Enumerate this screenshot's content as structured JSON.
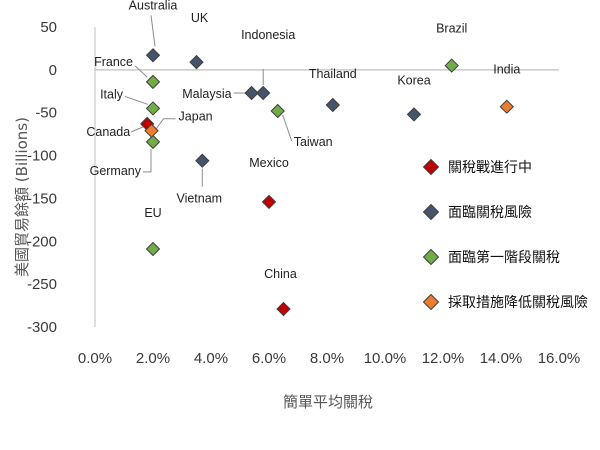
{
  "chart_data": {
    "type": "scatter",
    "title": "",
    "xlabel": "簡單平均關稅",
    "ylabel": "美國貿易餘額 (Billions)",
    "xlim": [
      0,
      16
    ],
    "ylim": [
      -300,
      50
    ],
    "x_ticks": [
      "0.0%",
      "2.0%",
      "4.0%",
      "6.0%",
      "8.0%",
      "10.0%",
      "12.0%",
      "14.0%",
      "16.0%"
    ],
    "y_ticks": [
      "50",
      "0",
      "-50",
      "-100",
      "-150",
      "-200",
      "-250",
      "-300"
    ],
    "grid": false,
    "zero_line": true,
    "legend_position": "right",
    "series": [
      {
        "name": "關稅戰進行中",
        "color": "#c00000",
        "points": [
          {
            "label": "Mexico",
            "x": 6.0,
            "y": -154
          },
          {
            "label": "China",
            "x": 6.5,
            "y": -279
          },
          {
            "label": "Canada",
            "x": 1.8,
            "y": -63
          }
        ]
      },
      {
        "name": "面臨關稅風險",
        "color": "#44546a",
        "points": [
          {
            "label": "Australia",
            "x": 2.0,
            "y": 17
          },
          {
            "label": "UK",
            "x": 3.5,
            "y": 9
          },
          {
            "label": "Indonesia",
            "x": 5.8,
            "y": -27
          },
          {
            "label": "Malaysia",
            "x": 5.4,
            "y": -27
          },
          {
            "label": "Thailand",
            "x": 8.2,
            "y": -41
          },
          {
            "label": "Korea",
            "x": 11.0,
            "y": -52
          },
          {
            "label": "Vietnam",
            "x": 3.7,
            "y": -106
          }
        ]
      },
      {
        "name": "面臨第一階段關稅",
        "color": "#70ad47",
        "points": [
          {
            "label": "France",
            "x": 2.0,
            "y": -14
          },
          {
            "label": "Italy",
            "x": 2.0,
            "y": -45
          },
          {
            "label": "Germany",
            "x": 2.0,
            "y": -84
          },
          {
            "label": "EU",
            "x": 2.0,
            "y": -209
          },
          {
            "label": "Taiwan",
            "x": 6.3,
            "y": -48
          },
          {
            "label": "Brazil",
            "x": 12.3,
            "y": 5
          }
        ]
      },
      {
        "name": "採取措施降低關稅風險",
        "color": "#ed7d31",
        "points": [
          {
            "label": "India",
            "x": 14.2,
            "y": -43
          },
          {
            "label": "Japan",
            "x": 1.95,
            "y": -71
          }
        ]
      }
    ]
  }
}
